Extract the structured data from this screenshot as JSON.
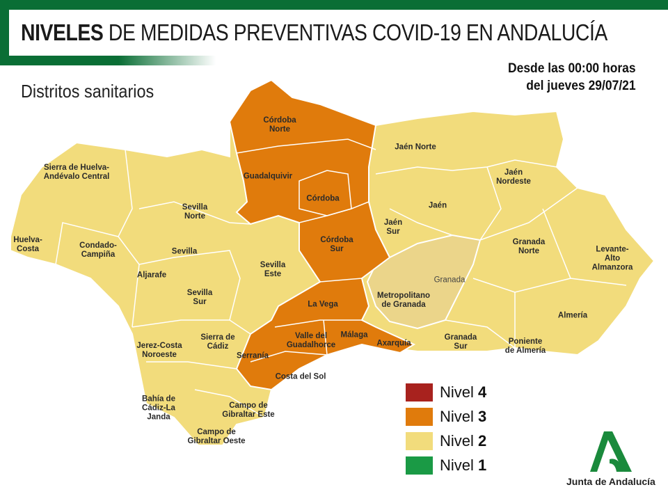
{
  "header": {
    "title_bold": "NIVELES",
    "title_rest": "DE MEDIDAS PREVENTIVAS COVID-19 EN ANDALUCÍA",
    "subtitle": "Distritos sanitarios",
    "date_text": "Desde las 00:00 horas\ndel jueves 29/07/21"
  },
  "colors": {
    "nivel_4": "#a8221e",
    "nivel_3": "#e07b0c",
    "nivel_2": "#f2dc7c",
    "nivel_1": "#1a9a45",
    "brand_green": "#0a6e35"
  },
  "districts": [
    {
      "name": "Córdoba\nNorte",
      "level": 3
    },
    {
      "name": "Guadalquivir",
      "level": 3
    },
    {
      "name": "Córdoba",
      "level": 3
    },
    {
      "name": "Córdoba\nSur",
      "level": 3
    },
    {
      "name": "La Vega",
      "level": 3
    },
    {
      "name": "Valle del\nGuadalhorce",
      "level": 3
    },
    {
      "name": "Málaga",
      "level": 3
    },
    {
      "name": "Axarquía",
      "level": 3
    },
    {
      "name": "Serranía",
      "level": 3
    },
    {
      "name": "Costa del Sol",
      "level": 3
    },
    {
      "name": "Sierra de Huelva-\nAndévalo Central",
      "level": 2
    },
    {
      "name": "Huelva-\nCosta",
      "level": 2
    },
    {
      "name": "Condado-\nCampiña",
      "level": 2
    },
    {
      "name": "Sevilla\nNorte",
      "level": 2
    },
    {
      "name": "Sevilla",
      "level": 2
    },
    {
      "name": "Aljarafe",
      "level": 2
    },
    {
      "name": "Sevilla\nEste",
      "level": 2
    },
    {
      "name": "Sevilla\nSur",
      "level": 2
    },
    {
      "name": "Sierra de\nCádiz",
      "level": 2
    },
    {
      "name": "Jerez-Costa\nNoroeste",
      "level": 2
    },
    {
      "name": "Bahía de\nCádiz-La\nJanda",
      "level": 2
    },
    {
      "name": "Campo de\nGibraltar Este",
      "level": 2
    },
    {
      "name": "Campo de\nGibraltar Oeste",
      "level": 2
    },
    {
      "name": "Jaén Norte",
      "level": 2
    },
    {
      "name": "Jaén\nNordeste",
      "level": 2
    },
    {
      "name": "Jaén",
      "level": 2
    },
    {
      "name": "Jaén\nSur",
      "level": 2
    },
    {
      "name": "Metropolitano\nde Granada",
      "level": 2
    },
    {
      "name": "Granada",
      "level": 2
    },
    {
      "name": "Granada\nNorte",
      "level": 2
    },
    {
      "name": "Levante-\nAlto Almanzora",
      "level": 2
    },
    {
      "name": "Almería",
      "level": 2
    },
    {
      "name": "Granada\nSur",
      "level": 2
    },
    {
      "name": "Poniente\nde Almería",
      "level": 2
    }
  ],
  "legend": [
    {
      "label": "Nivel",
      "number": "4"
    },
    {
      "label": "Nivel",
      "number": "3"
    },
    {
      "label": "Nivel",
      "number": "2"
    },
    {
      "label": "Nivel",
      "number": "1"
    }
  ],
  "logo": {
    "text": "Junta de Andalucía"
  }
}
